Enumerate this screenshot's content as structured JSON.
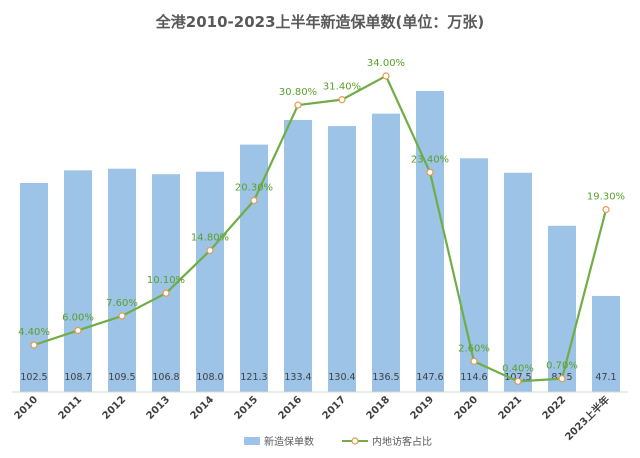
{
  "chart_data": {
    "type": "bar+line",
    "title": "全港2010-2023上半年新造保单数(单位：万张)",
    "categories": [
      "2010",
      "2011",
      "2012",
      "2013",
      "2014",
      "2015",
      "2016",
      "2017",
      "2018",
      "2019",
      "2020",
      "2021",
      "2022",
      "2023上半年"
    ],
    "series": [
      {
        "name": "新造保单数",
        "type": "bar",
        "values": [
          102.5,
          108.7,
          109.5,
          106.8,
          108.0,
          121.3,
          133.4,
          130.4,
          136.5,
          147.6,
          114.6,
          107.5,
          81.5,
          47.1
        ],
        "labels": [
          "102.5",
          "108.7",
          "109.5",
          "106.8",
          "108.0",
          "121.3",
          "133.4",
          "130.4",
          "136.5",
          "147.6",
          "114.6",
          "107.5",
          "81.5",
          "47.1"
        ],
        "color": "#9dc3e6"
      },
      {
        "name": "内地访客占比",
        "type": "line",
        "values": [
          4.4,
          6.0,
          7.6,
          10.1,
          14.8,
          20.3,
          30.8,
          31.4,
          34.0,
          23.4,
          2.6,
          0.4,
          0.7,
          19.3
        ],
        "labels": [
          "4.40%",
          "6.00%",
          "7.60%",
          "10.10%",
          "14.80%",
          "20.30%",
          "30.80%",
          "31.40%",
          "34.00%",
          "23.40%",
          "2.60%",
          "0.40%",
          "0.70%",
          "19.30%"
        ],
        "color": "#70ad47"
      }
    ],
    "legend": [
      "新造保单数",
      "内地访客占比"
    ],
    "legend_position": "bottom",
    "grid": false
  }
}
